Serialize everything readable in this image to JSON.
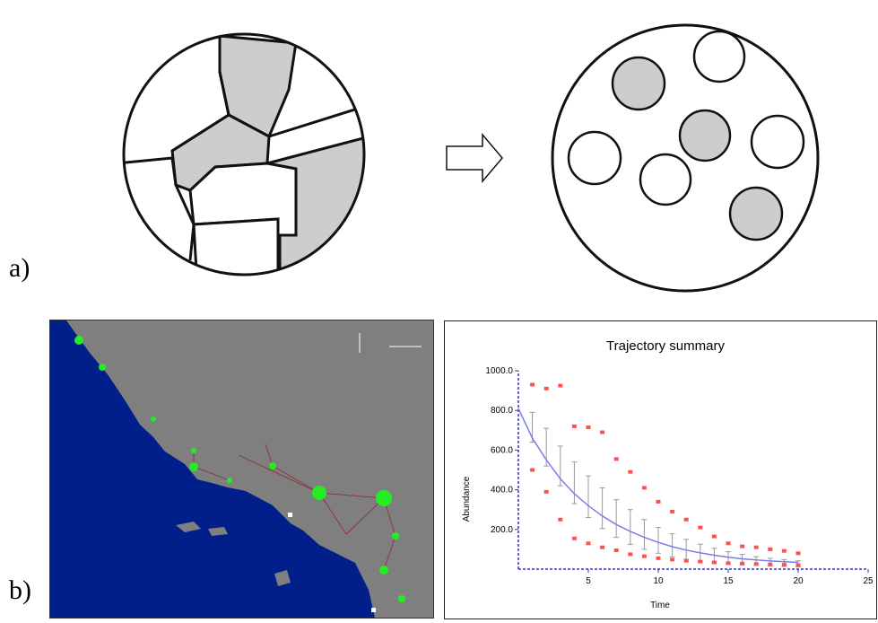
{
  "panel_labels": {
    "a": "a)",
    "b": "b)"
  },
  "colors": {
    "ocean": "#001f8a",
    "land": "#7f7f7f",
    "node": "#22ee22",
    "link": "#8b3a3a",
    "patch_fill": "#cdcdcd",
    "trajectory": "#7b7bf0",
    "bounds": "#ff5050"
  },
  "chart_data": {
    "type": "line",
    "title": "Trajectory summary",
    "xlabel": "Time",
    "ylabel": "Abundance",
    "xlim": [
      0,
      25
    ],
    "ylim": [
      0,
      1000
    ],
    "x_ticks": [
      "5",
      "10",
      "15",
      "20",
      "25"
    ],
    "y_ticks": [
      "200.0",
      "400.0",
      "600.0",
      "800.0",
      "1000.0"
    ],
    "grid": false,
    "mean_curve": {
      "x": [
        0,
        1,
        2,
        3,
        4,
        5,
        6,
        7,
        8,
        9,
        10,
        11,
        12,
        13,
        14,
        15,
        16,
        17,
        18,
        19,
        20
      ],
      "y": [
        810,
        660,
        550,
        455,
        380,
        320,
        268,
        225,
        190,
        160,
        135,
        113,
        96,
        82,
        70,
        60,
        52,
        46,
        41,
        37,
        34
      ]
    },
    "error_bars": {
      "x": [
        1,
        2,
        3,
        4,
        5,
        6,
        7,
        8,
        9,
        10,
        11,
        12,
        13,
        14,
        15,
        16,
        17,
        18,
        19,
        20
      ],
      "low": [
        640,
        520,
        420,
        330,
        260,
        205,
        160,
        125,
        100,
        80,
        62,
        50,
        40,
        32,
        26,
        22,
        19,
        16,
        14,
        12
      ],
      "high": [
        790,
        710,
        620,
        540,
        470,
        410,
        350,
        300,
        250,
        210,
        178,
        150,
        126,
        105,
        88,
        74,
        63,
        55,
        48,
        42
      ]
    },
    "upper_bound": {
      "x": [
        1,
        2,
        3,
        4,
        5,
        6,
        7,
        8,
        9,
        10,
        11,
        12,
        13,
        14,
        15,
        16,
        17,
        18,
        19,
        20
      ],
      "y": [
        930,
        910,
        925,
        720,
        715,
        690,
        555,
        490,
        410,
        340,
        290,
        250,
        210,
        165,
        130,
        115,
        110,
        100,
        92,
        80
      ]
    },
    "lower_bound": {
      "x": [
        1,
        2,
        3,
        4,
        5,
        6,
        7,
        8,
        9,
        10,
        11,
        12,
        13,
        14,
        15,
        16,
        17,
        18,
        19,
        20
      ],
      "y": [
        500,
        390,
        250,
        155,
        130,
        110,
        95,
        75,
        65,
        55,
        48,
        42,
        38,
        34,
        30,
        28,
        26,
        24,
        22,
        20
      ]
    }
  }
}
